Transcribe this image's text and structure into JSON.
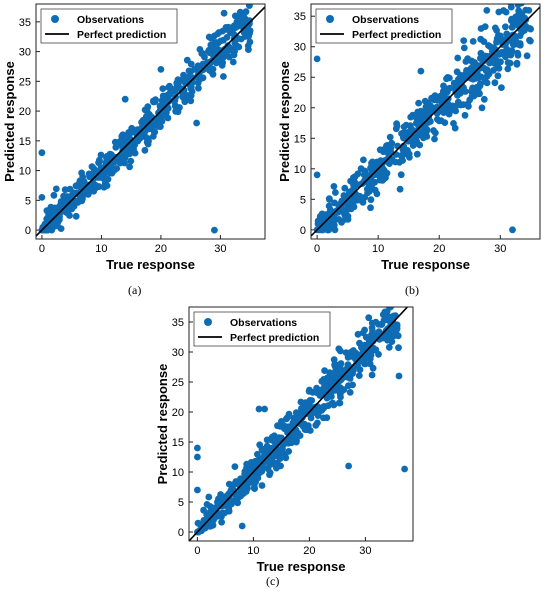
{
  "colors": {
    "observations": "#0e6cb5",
    "perfect_line": "#000000",
    "frame": "#222222"
  },
  "chart_data": [
    {
      "panel": "(a)",
      "type": "scatter",
      "xlabel": "True response",
      "ylabel": "Predicted response",
      "xlim": [
        -1,
        37.5
      ],
      "ylim": [
        -1.5,
        38
      ],
      "xticks": [
        0,
        10,
        20,
        30
      ],
      "yticks": [
        0,
        5,
        10,
        15,
        20,
        25,
        30,
        35
      ],
      "legend": {
        "placement": "top-left",
        "entries": [
          "Observations",
          "Perfect prediction"
        ]
      },
      "series": [
        {
          "name": "Observations",
          "cloud": {
            "x_min": 0,
            "x_max": 35,
            "spread": 2.0,
            "count": 520,
            "seed": 11
          },
          "outliers": [
            {
              "x": 0,
              "y": 13
            },
            {
              "x": 0,
              "y": 5.5
            },
            {
              "x": 0,
              "y": 0
            },
            {
              "x": 0.5,
              "y": 1
            },
            {
              "x": 29,
              "y": 0
            },
            {
              "x": 32.5,
              "y": 36
            },
            {
              "x": 33,
              "y": 36
            },
            {
              "x": 14,
              "y": 22
            },
            {
              "x": 26,
              "y": 18
            },
            {
              "x": 20,
              "y": 27
            }
          ]
        },
        {
          "name": "Perfect prediction",
          "x": [
            -1,
            37.5
          ],
          "y": [
            -1,
            37.5
          ]
        }
      ]
    },
    {
      "panel": "(b)",
      "type": "scatter",
      "xlabel": "True response",
      "ylabel": "Predicted response",
      "xlim": [
        -1,
        36.5
      ],
      "ylim": [
        -1.5,
        37
      ],
      "xticks": [
        0,
        10,
        20,
        30
      ],
      "yticks": [
        0,
        5,
        10,
        15,
        20,
        25,
        30,
        35
      ],
      "legend": {
        "placement": "top-left",
        "entries": [
          "Observations",
          "Perfect prediction"
        ]
      },
      "series": [
        {
          "name": "Observations",
          "cloud": {
            "x_min": 0,
            "x_max": 35,
            "spread": 2.4,
            "count": 560,
            "seed": 23
          },
          "outliers": [
            {
              "x": 0,
              "y": 28
            },
            {
              "x": 0,
              "y": 9
            },
            {
              "x": 0,
              "y": 0
            },
            {
              "x": 32,
              "y": 0
            },
            {
              "x": 17,
              "y": 26
            },
            {
              "x": 27,
              "y": 20
            },
            {
              "x": 24,
              "y": 31
            }
          ]
        },
        {
          "name": "Perfect prediction",
          "x": [
            -1,
            36.5
          ],
          "y": [
            -1,
            36.5
          ]
        }
      ]
    },
    {
      "panel": "(c)",
      "type": "scatter",
      "xlabel": "True response",
      "ylabel": "Predicted response",
      "xlim": [
        -1.5,
        38.5
      ],
      "ylim": [
        -1.5,
        37.5
      ],
      "xticks": [
        0,
        10,
        20,
        30
      ],
      "yticks": [
        0,
        5,
        10,
        15,
        20,
        25,
        30,
        35
      ],
      "legend": {
        "placement": "top-left",
        "entries": [
          "Observations",
          "Perfect prediction"
        ]
      },
      "series": [
        {
          "name": "Observations",
          "cloud": {
            "x_min": 0,
            "x_max": 36,
            "spread": 2.0,
            "count": 540,
            "seed": 37
          },
          "outliers": [
            {
              "x": 0,
              "y": 14
            },
            {
              "x": 0,
              "y": 12.5
            },
            {
              "x": 0,
              "y": 7
            },
            {
              "x": 0,
              "y": 0
            },
            {
              "x": 37,
              "y": 10.5
            },
            {
              "x": 27,
              "y": 11
            },
            {
              "x": 8,
              "y": 1
            },
            {
              "x": 11,
              "y": 20.5
            },
            {
              "x": 12,
              "y": 20.5
            },
            {
              "x": 36,
              "y": 26
            },
            {
              "x": 35,
              "y": 36
            }
          ]
        },
        {
          "name": "Perfect prediction",
          "x": [
            -1.5,
            38.5
          ],
          "y": [
            -1.5,
            38.5
          ]
        }
      ]
    }
  ]
}
